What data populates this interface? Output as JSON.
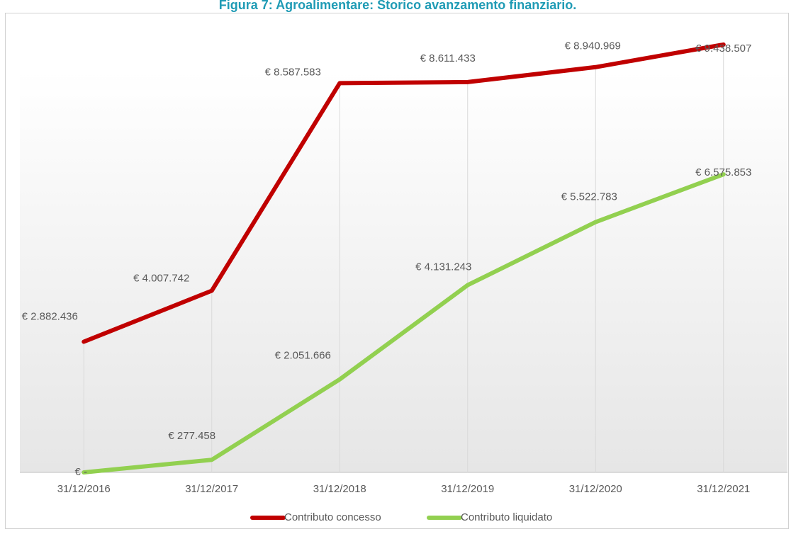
{
  "chart_data": {
    "type": "line",
    "title": "Figura 7: Agroalimentare: Storico avanzamento finanziario.",
    "categories": [
      "31/12/2016",
      "31/12/2017",
      "31/12/2018",
      "31/12/2019",
      "31/12/2020",
      "31/12/2021"
    ],
    "series": [
      {
        "name": "Contributo concesso",
        "color": "#c00000",
        "values": [
          2882436,
          4007742,
          8587583,
          8611433,
          8940969,
          9438507
        ],
        "value_labels": [
          "€ 2.882.436",
          "€ 4.007.742",
          "€ 8.587.583",
          "€ 8.611.433",
          "€ 8.940.969",
          "€ 9.438.507"
        ]
      },
      {
        "name": "Contributo liquidato",
        "color": "#92d050",
        "values": [
          0,
          277458,
          2051666,
          4131243,
          5522783,
          6575853
        ],
        "value_labels": [
          "€ -",
          "€ 277.458",
          "€ 2.051.666",
          "€ 4.131.243",
          "€ 5.522.783",
          "€ 6.575.853"
        ]
      }
    ],
    "ylim": [
      0,
      10000000
    ],
    "legend": "bottom"
  }
}
